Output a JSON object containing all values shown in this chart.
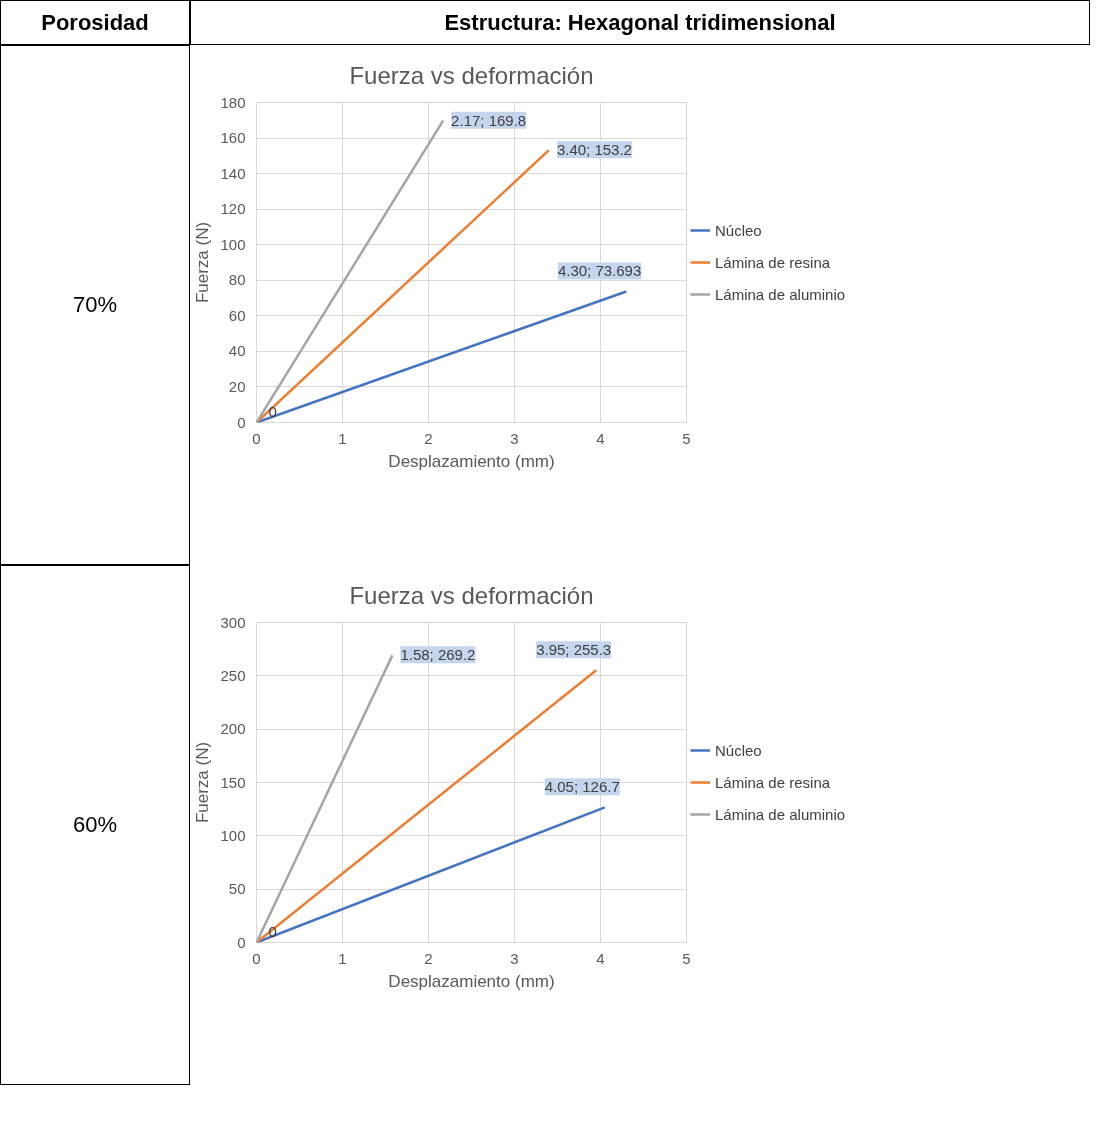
{
  "chart_data": [
    {
      "type": "line",
      "title": "Fuerza vs deformación",
      "xlabel": "Desplazamiento (mm)",
      "ylabel": "Fuerza (N)",
      "annotations": [
        "Porosidad",
        "Estructura: Hexagonal tridimensional",
        "70%"
      ],
      "xlim": [
        0,
        5
      ],
      "xticks": [
        0,
        1,
        2,
        3,
        4,
        5
      ],
      "ylim": [
        0,
        180
      ],
      "yticks": [
        0,
        20,
        40,
        60,
        80,
        100,
        120,
        140,
        160,
        180
      ],
      "grid": true,
      "legend": "right",
      "line_style": "solid",
      "series": [
        {
          "name": "Núcleo",
          "color": "#4472c4",
          "x": [
            0,
            4.3
          ],
          "values": [
            0,
            73.693
          ],
          "value_labels": [
            "0",
            "4.30; 73.693"
          ]
        },
        {
          "name": "Lámina de resina",
          "color": "#ed7d31",
          "x": [
            0,
            3.4
          ],
          "values": [
            0,
            153.2
          ],
          "value_labels": [
            null,
            "3.40; 153.2"
          ]
        },
        {
          "name": "Lámina de aluminio",
          "color": "#a5a5a5",
          "x": [
            0,
            2.17
          ],
          "values": [
            0,
            169.8
          ],
          "value_labels": [
            null,
            "2.17; 169.8"
          ]
        }
      ]
    },
    {
      "type": "line",
      "title": "Fuerza vs deformación",
      "xlabel": "Desplazamiento (mm)",
      "ylabel": "Fuerza (N)",
      "annotations": [
        "60%"
      ],
      "xlim": [
        0,
        5
      ],
      "xticks": [
        0,
        1,
        2,
        3,
        4,
        5
      ],
      "ylim": [
        0,
        300
      ],
      "yticks": [
        0,
        50,
        100,
        150,
        200,
        250,
        300
      ],
      "grid": true,
      "legend": "right",
      "line_style": "solid",
      "series": [
        {
          "name": "Núcleo",
          "color": "#4472c4",
          "x": [
            0,
            4.05
          ],
          "values": [
            0,
            126.7
          ],
          "value_labels": [
            null,
            "4.05; 126.7"
          ]
        },
        {
          "name": "Lámina de resina",
          "color": "#ed7d31",
          "x": [
            0,
            3.95
          ],
          "values": [
            0,
            255.3
          ],
          "value_labels": [
            null,
            "3.95; 255.3"
          ]
        },
        {
          "name": "Lámina de aluminio",
          "color": "#a5a5a5",
          "x": [
            0,
            1.58
          ],
          "values": [
            0,
            269.2
          ],
          "value_labels": [
            "0",
            "1.58; 269.2"
          ]
        }
      ]
    }
  ]
}
